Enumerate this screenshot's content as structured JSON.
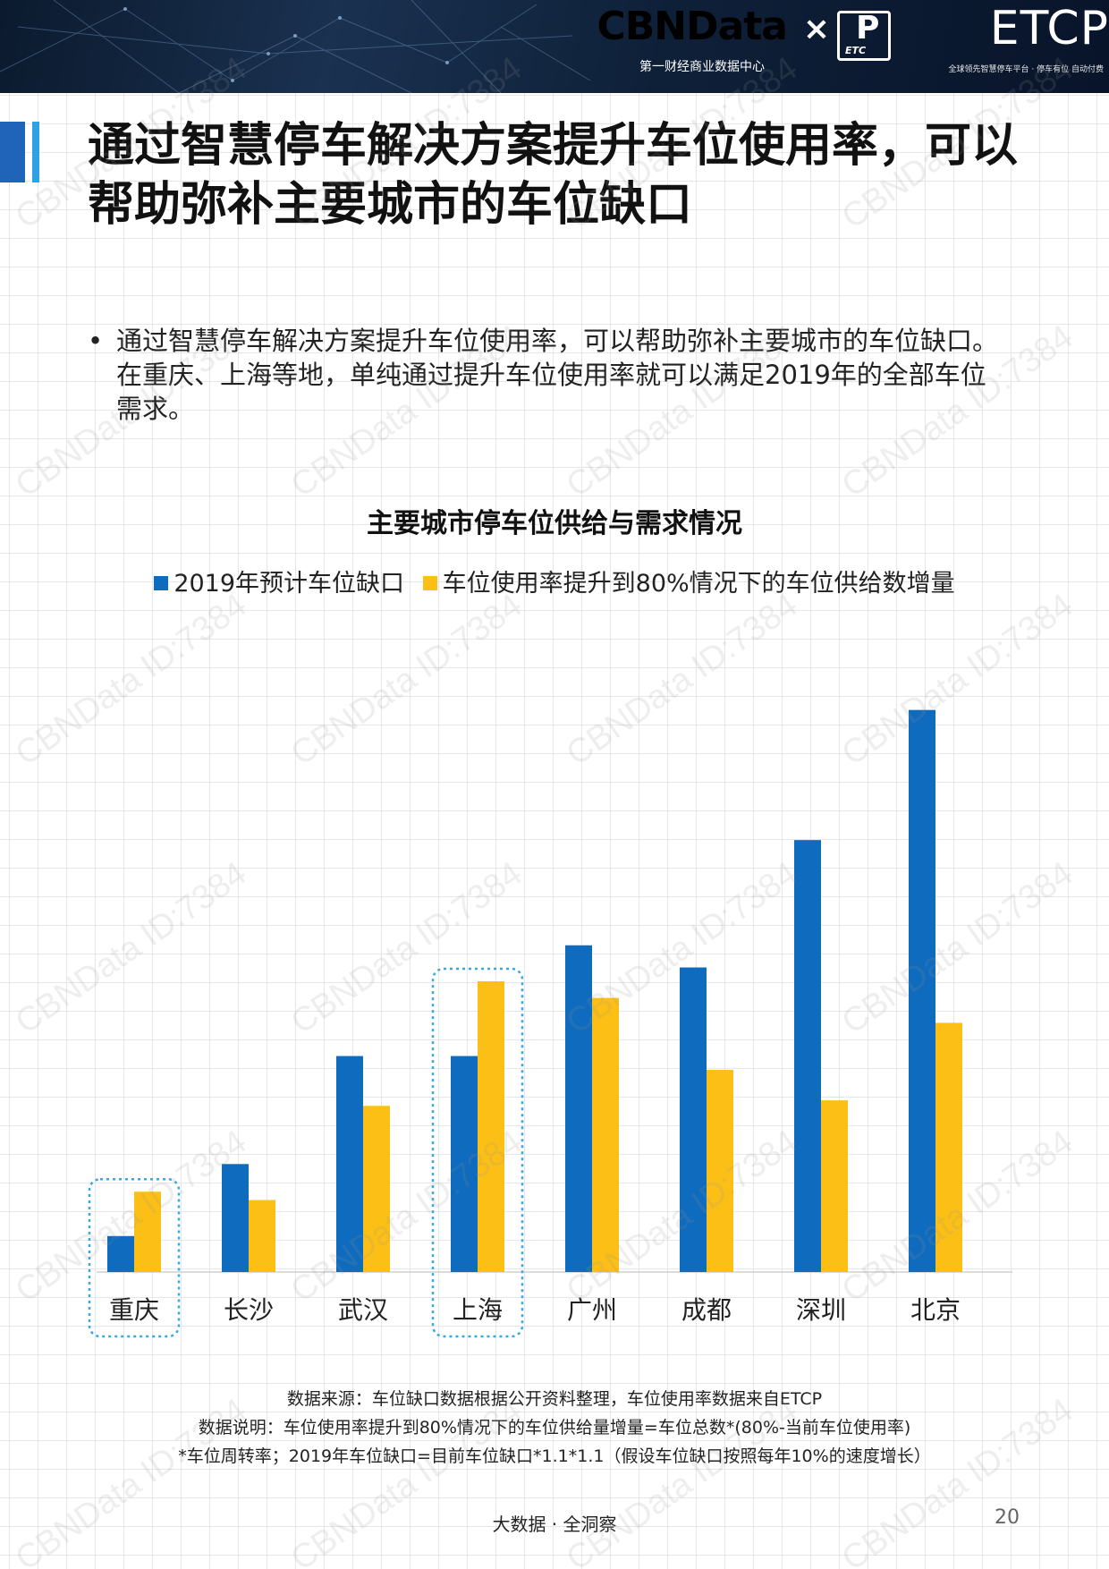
{
  "header": {
    "brand_cbn": "CBNData",
    "brand_cbn_sub": "第一财经商业数据中心",
    "times": "×",
    "etc_label": "ETC",
    "etc_p": "P",
    "brand_etcp": "ETCP",
    "brand_etcp_sub": "全球领先智慧停车平台 · 停车有位 自动付费"
  },
  "title": "通过智慧停车解决方案提升车位使用率，可以帮助弥补主要城市的车位缺口",
  "bullet": {
    "dot": "•",
    "text": "通过智慧停车解决方案提升车位使用率，可以帮助弥补主要城市的车位缺口。在重庆、上海等地，单纯通过提升车位使用率就可以满足2019年的全部车位需求。"
  },
  "chart_data": {
    "type": "bar",
    "title": "主要城市停车位供给与需求情况",
    "categories": [
      "重庆",
      "长沙",
      "武汉",
      "上海",
      "广州",
      "成都",
      "深圳",
      "北京"
    ],
    "series": [
      {
        "name": "2019年预计车位缺口",
        "color": "#0f6bbd",
        "values": [
          6.5,
          19.5,
          39,
          39,
          59,
          55,
          78,
          101.5
        ]
      },
      {
        "name": "车位使用率提升到80%情况下的车位供给数增量",
        "color": "#fbbf16",
        "values": [
          14.5,
          13,
          30,
          52.5,
          49.5,
          36.5,
          31,
          45
        ]
      }
    ],
    "highlighted_categories": [
      "重庆",
      "上海"
    ],
    "ylim": [
      0,
      105
    ],
    "xlabel": "",
    "ylabel": "",
    "grid": false,
    "legend_position": "top"
  },
  "notes": {
    "line1": "数据来源：车位缺口数据根据公开资料整理，车位使用率数据来自ETCP",
    "line2": "数据说明：车位使用率提升到80%情况下的车位供给量增量=车位总数*(80%-当前车位使用率)",
    "line3": "*车位周转率；2019年车位缺口=目前车位缺口*1.1*1.1（假设车位缺口按照每年10%的速度增长）"
  },
  "footer": {
    "text": "大数据 · 全洞察",
    "page": "20"
  },
  "watermark": "CBNData ID:7384",
  "colors": {
    "blue": "#0f6bbd",
    "yellow": "#fbbf16",
    "highlight": "#3aa7dd",
    "title_bar": "#1f64b8"
  }
}
